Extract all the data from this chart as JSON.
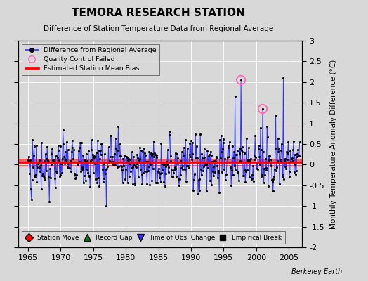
{
  "title": "TEMORA RESEARCH STATION",
  "subtitle": "Difference of Station Temperature Data from Regional Average",
  "ylabel": "Monthly Temperature Anomaly Difference (°C)",
  "xlabel_years": [
    1965,
    1970,
    1975,
    1980,
    1985,
    1990,
    1995,
    2000,
    2005
  ],
  "ylim": [
    -2.0,
    3.0
  ],
  "xlim": [
    1963.5,
    2007.0
  ],
  "mean_bias": 0.05,
  "mean_bias_halfwidth": 0.1,
  "bias_color": "#ff0000",
  "line_color": "#3333ff",
  "dot_color": "#000000",
  "qc_color": "#ff69b4",
  "background_color": "#d8d8d8",
  "yticks": [
    -2.0,
    -1.5,
    -1.0,
    -0.5,
    0.0,
    0.5,
    1.0,
    1.5,
    2.0,
    2.5,
    3.0
  ],
  "seed": 77,
  "figsize": [
    5.24,
    4.0
  ],
  "dpi": 100
}
